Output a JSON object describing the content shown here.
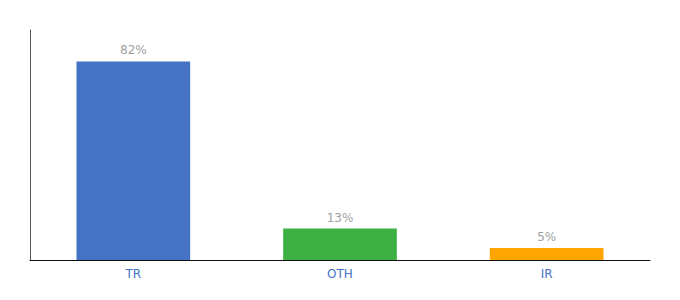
{
  "chart_data": {
    "type": "bar",
    "categories": [
      "TR",
      "OTH",
      "IR"
    ],
    "values": [
      82,
      13,
      5
    ],
    "value_labels": [
      "82%",
      "13%",
      "5%"
    ],
    "colors": [
      "#4472c4",
      "#3cb043",
      "#ffa500"
    ],
    "ylim": [
      0,
      95
    ],
    "tick_labels": "x",
    "data_labels": true,
    "grid": false
  }
}
